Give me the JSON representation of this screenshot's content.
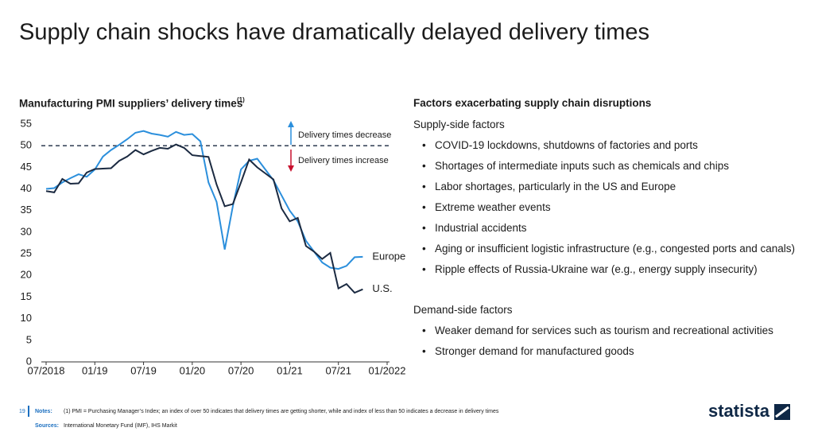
{
  "title": "Supply chain shocks have dramatically delayed delivery times",
  "chart_data": {
    "type": "line",
    "title": "Manufacturing PMI suppliers’ delivery times",
    "title_note": "(1)",
    "x": [
      "2018-07",
      "2018-08",
      "2018-09",
      "2018-10",
      "2018-11",
      "2018-12",
      "2019-01",
      "2019-02",
      "2019-03",
      "2019-04",
      "2019-05",
      "2019-06",
      "2019-07",
      "2019-08",
      "2019-09",
      "2019-10",
      "2019-11",
      "2019-12",
      "2020-01",
      "2020-02",
      "2020-03",
      "2020-04",
      "2020-05",
      "2020-06",
      "2020-07",
      "2020-08",
      "2020-09",
      "2020-10",
      "2020-11",
      "2020-12",
      "2021-01",
      "2021-02",
      "2021-03",
      "2021-04",
      "2021-05",
      "2021-06",
      "2021-07",
      "2021-08",
      "2021-09",
      "2021-10"
    ],
    "series": [
      {
        "name": "Europe",
        "color": "#2b8fdc",
        "values": [
          40,
          40.2,
          41.5,
          42.5,
          43.4,
          42.8,
          44.5,
          47.5,
          49,
          50.2,
          51.5,
          53,
          53.4,
          52.8,
          52.5,
          52.1,
          53.2,
          52.5,
          52.7,
          51,
          41.5,
          37,
          26,
          36,
          44.5,
          46.5,
          47,
          44.5,
          42,
          38.5,
          35,
          32.5,
          28,
          25.5,
          23,
          21.8,
          21.5,
          22.2,
          24.2,
          24.3
        ]
      },
      {
        "name": "U.S.",
        "color": "#1b2a41",
        "values": [
          39.5,
          39.2,
          42.3,
          41.2,
          41.3,
          43.8,
          44.6,
          44.7,
          44.8,
          46.5,
          47.5,
          49,
          48,
          48.8,
          49.5,
          49.3,
          50.3,
          49.5,
          47.8,
          47.6,
          47.4,
          41,
          36,
          36.5,
          41.5,
          46.8,
          45,
          43.6,
          42.2,
          35.5,
          32.5,
          33.3,
          26.8,
          25.5,
          23.8,
          25.2,
          17,
          18,
          16,
          16.8
        ]
      }
    ],
    "xlim": [
      "2018-07",
      "2022-01"
    ],
    "xticks": [
      {
        "value": "2018-07",
        "label": "07/2018"
      },
      {
        "value": "2019-01",
        "label": "01/19"
      },
      {
        "value": "2019-07",
        "label": "07/19"
      },
      {
        "value": "2020-01",
        "label": "01/20"
      },
      {
        "value": "2020-07",
        "label": "07/20"
      },
      {
        "value": "2021-01",
        "label": "01/21"
      },
      {
        "value": "2021-07",
        "label": "07/21"
      },
      {
        "value": "2022-01",
        "label": "01/2022"
      }
    ],
    "ylim": [
      0,
      55
    ],
    "yticks": [
      0,
      5,
      10,
      15,
      20,
      25,
      30,
      35,
      40,
      45,
      50,
      55
    ],
    "reference_line": 50,
    "annotations": [
      "Delivery times decrease",
      "Delivery times increase"
    ]
  },
  "factors": {
    "title": "Factors exacerbating supply chain disruptions",
    "supply": {
      "heading": "Supply-side factors",
      "items": [
        "COVID-19 lockdowns, shutdowns of factories and ports",
        "Shortages of intermediate inputs such as chemicals and chips",
        "Labor shortages, particularly in the US and Europe",
        "Extreme weather events",
        "Industrial accidents",
        "Aging or insufficient logistic infrastructure (e.g., congested ports and canals)",
        "Ripple effects of Russia-Ukraine war (e.g., energy supply insecurity)"
      ]
    },
    "demand": {
      "heading": "Demand-side factors",
      "items": [
        "Weaker demand for services such as tourism and recreational activities",
        "Stronger demand for manufactured goods"
      ]
    }
  },
  "footer": {
    "page": "19",
    "notes_label": "Notes:",
    "notes": "(1) PMI = Purchasing Manager’s Index; an index of over 50 indicates that delivery times are getting shorter, while and index of less than 50 indicates a decrease in delivery times",
    "sources_label": "Sources:",
    "sources": "International Monetary Fund (IMF), IHS Markit",
    "logo": "statista"
  }
}
